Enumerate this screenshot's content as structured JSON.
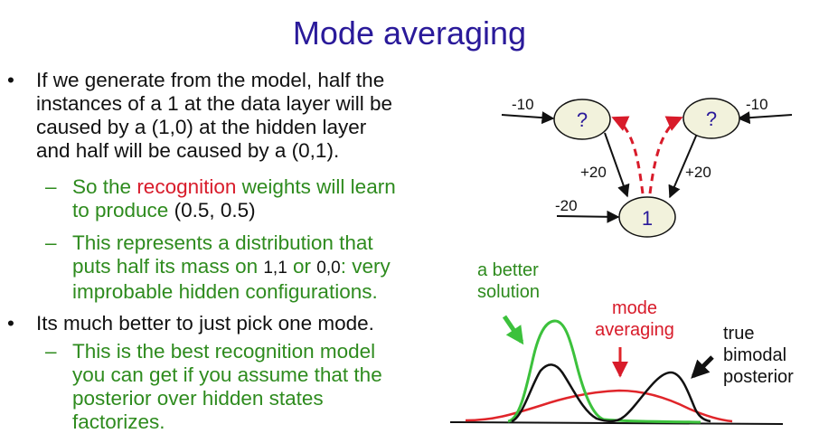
{
  "title": "Mode averaging",
  "bullets": {
    "b1": {
      "l1": "If we generate from the model, half the",
      "l2": "instances of a 1 at the data layer will be",
      "l3": "caused by a (1,0) at the hidden layer",
      "l4": "and half will be caused by a (0,1)."
    },
    "s1": {
      "l1_pre": "So the ",
      "l1_red": "recognition",
      "l1_post": " weights will learn",
      "l2_pre": "to produce ",
      "l2_blk": "(0.5, 0.5)"
    },
    "s2": {
      "l1": "This represents a distribution that",
      "l2_pre": "puts half its mass on ",
      "l2_a": "1,1",
      "l2_mid": " or ",
      "l2_b": "0,0",
      "l2_post": ": very",
      "l3": "improbable hidden configurations."
    },
    "b2": {
      "l1": "Its much better to just pick one mode."
    },
    "s3": {
      "l1": "This is the best recognition model",
      "l2": "you can get if you assume that the",
      "l3": "posterior over hidden states",
      "l4": "factorizes."
    }
  },
  "network": {
    "hidden_left": "?",
    "hidden_right": "?",
    "visible": "1",
    "bias_left": "-10",
    "bias_right": "-10",
    "bias_visible": "-20",
    "weight_left": "+20",
    "weight_right": "+20"
  },
  "plot_labels": {
    "better_l1": "a better",
    "better_l2": "solution",
    "mode_l1": "mode",
    "mode_l2": "averaging",
    "true_l1": "true",
    "true_l2": "bimodal",
    "true_l3": "posterior"
  },
  "colors": {
    "title": "#2a1a9a",
    "green": "#2e8b1e",
    "red": "#d81b2a",
    "curve_green": "#3cc13c",
    "curve_red": "#e0252a",
    "node_fill": "#f2f2dc"
  }
}
